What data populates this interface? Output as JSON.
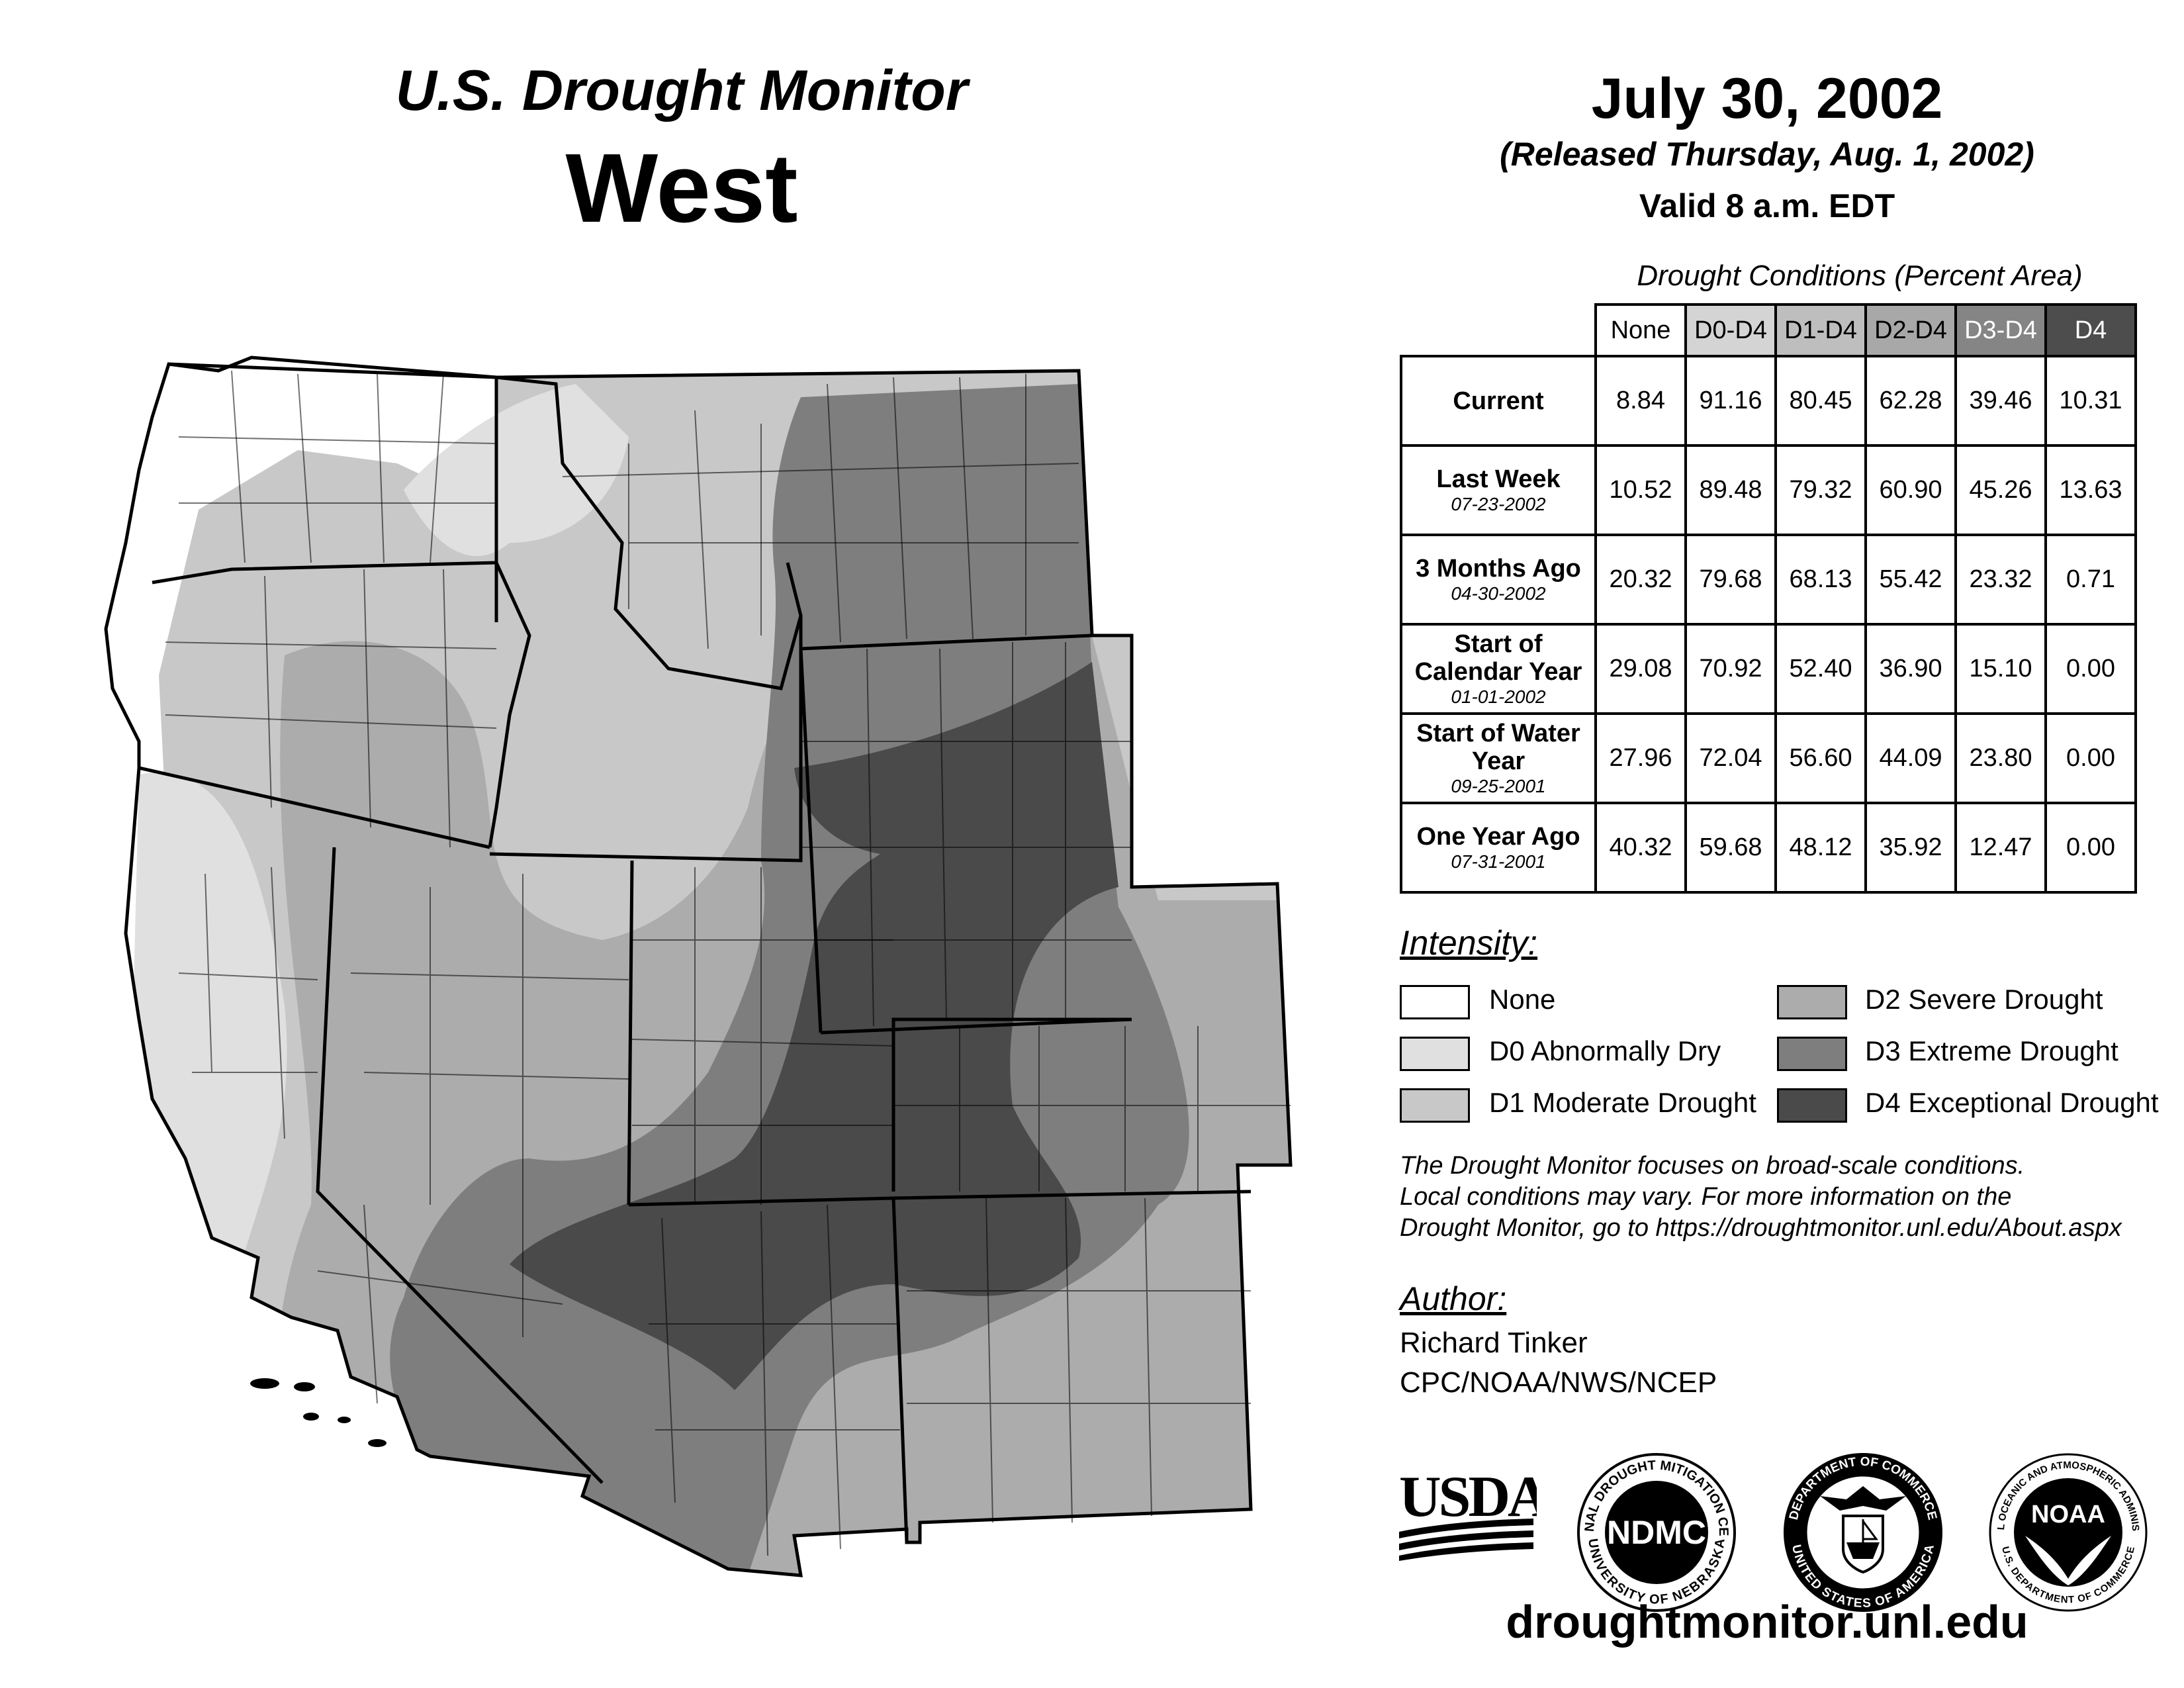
{
  "header": {
    "title": "U.S. Drought Monitor",
    "region": "West",
    "date": "July 30, 2002",
    "released": "(Released Thursday, Aug. 1, 2002)",
    "valid": "Valid 8 a.m. EDT"
  },
  "table": {
    "caption": "Drought Conditions (Percent Area)",
    "columns": [
      "None",
      "D0-D4",
      "D1-D4",
      "D2-D4",
      "D3-D4",
      "D4"
    ],
    "column_colors": [
      "#ffffff",
      "#d4d4d4",
      "#bebebe",
      "#a8a8a8",
      "#858585",
      "#4d4d4d"
    ],
    "rows": [
      {
        "label": "Current",
        "date": "",
        "values": [
          "8.84",
          "91.16",
          "80.45",
          "62.28",
          "39.46",
          "10.31"
        ]
      },
      {
        "label": "Last Week",
        "date": "07-23-2002",
        "values": [
          "10.52",
          "89.48",
          "79.32",
          "60.90",
          "45.26",
          "13.63"
        ]
      },
      {
        "label": "3 Months Ago",
        "date": "04-30-2002",
        "values": [
          "20.32",
          "79.68",
          "68.13",
          "55.42",
          "23.32",
          "0.71"
        ]
      },
      {
        "label": "Start of Calendar Year",
        "date": "01-01-2002",
        "values": [
          "29.08",
          "70.92",
          "52.40",
          "36.90",
          "15.10",
          "0.00"
        ]
      },
      {
        "label": "Start of Water Year",
        "date": "09-25-2001",
        "values": [
          "27.96",
          "72.04",
          "56.60",
          "44.09",
          "23.80",
          "0.00"
        ]
      },
      {
        "label": "One Year Ago",
        "date": "07-31-2001",
        "values": [
          "40.32",
          "59.68",
          "48.12",
          "35.92",
          "12.47",
          "0.00"
        ]
      }
    ]
  },
  "legend": {
    "title": "Intensity:",
    "items": [
      {
        "label": "None",
        "color": "#ffffff"
      },
      {
        "label": "D0 Abnormally Dry",
        "color": "#e0e0e0"
      },
      {
        "label": "D1 Moderate Drought",
        "color": "#c8c8c8"
      },
      {
        "label": "D2 Severe Drought",
        "color": "#acacac"
      },
      {
        "label": "D3 Extreme Drought",
        "color": "#7e7e7e"
      },
      {
        "label": "D4 Exceptional Drought",
        "color": "#4a4a4a"
      }
    ]
  },
  "note": {
    "line1": "The Drought Monitor focuses on broad-scale conditions.",
    "line2": "Local conditions may vary. For more information on the",
    "line3": "Drought Monitor, go to https://droughtmonitor.unl.edu/About.aspx"
  },
  "author": {
    "title": "Author:",
    "name": "Richard Tinker",
    "org": "CPC/NOAA/NWS/NCEP"
  },
  "logos": {
    "usda": "USDA",
    "ndmc": "NDMC",
    "ndmc_ring_top": "NATIONAL DROUGHT MITIGATION CENTER",
    "ndmc_ring_bottom": "UNIVERSITY OF NEBRASKA",
    "doc_ring_top": "DEPARTMENT OF COMMERCE",
    "doc_ring_bottom": "UNITED STATES OF AMERICA",
    "noaa": "NOAA",
    "noaa_ring_top": "NATIONAL OCEANIC AND ATMOSPHERIC ADMINISTRATION",
    "noaa_ring_bottom": "U.S. DEPARTMENT OF COMMERCE"
  },
  "map": {
    "none_color": "#ffffff",
    "d0_color": "#e0e0e0",
    "d1_color": "#c8c8c8",
    "d2_color": "#acacac",
    "d3_color": "#7e7e7e",
    "d4_color": "#4a4a4a"
  },
  "footer": {
    "url": "droughtmonitor.unl.edu"
  }
}
